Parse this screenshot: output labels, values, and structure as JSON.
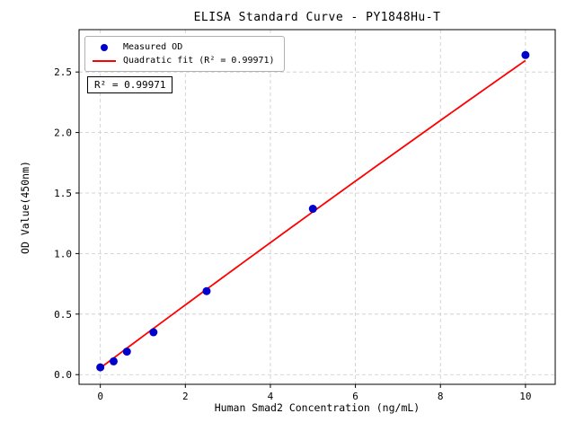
{
  "chart_data": {
    "type": "scatter",
    "title": "ELISA Standard Curve - PY1848Hu-T",
    "xlabel": "Human Smad2 Concentration (ng/mL)",
    "ylabel": "OD Value(450nm)",
    "annotation": "R² = 0.99971",
    "series": [
      {
        "name": "Measured OD",
        "type": "scatter",
        "color": "#0000cd",
        "x": [
          0,
          0.313,
          0.625,
          1.25,
          2.5,
          5,
          10
        ],
        "y": [
          0.06,
          0.11,
          0.19,
          0.35,
          0.69,
          1.37,
          2.64
        ]
      },
      {
        "name": "Quadratic fit (R² = 0.99971)",
        "type": "line",
        "color": "#ff0000",
        "fit": "quadratic",
        "r_squared": 0.99971,
        "coefficients": [
          0.055,
          0.262,
          -0.0008
        ],
        "x_range": [
          0,
          10
        ]
      }
    ],
    "x_ticks": [
      0,
      2,
      4,
      6,
      8,
      10
    ],
    "y_ticks": [
      0.0,
      0.5,
      1.0,
      1.5,
      2.0,
      2.5
    ],
    "xlim": [
      -0.5,
      10.7
    ],
    "ylim": [
      -0.08,
      2.85
    ],
    "grid": true,
    "grid_style": "dashed",
    "grid_color": "#c9c9c9",
    "legend_position": "upper left"
  }
}
